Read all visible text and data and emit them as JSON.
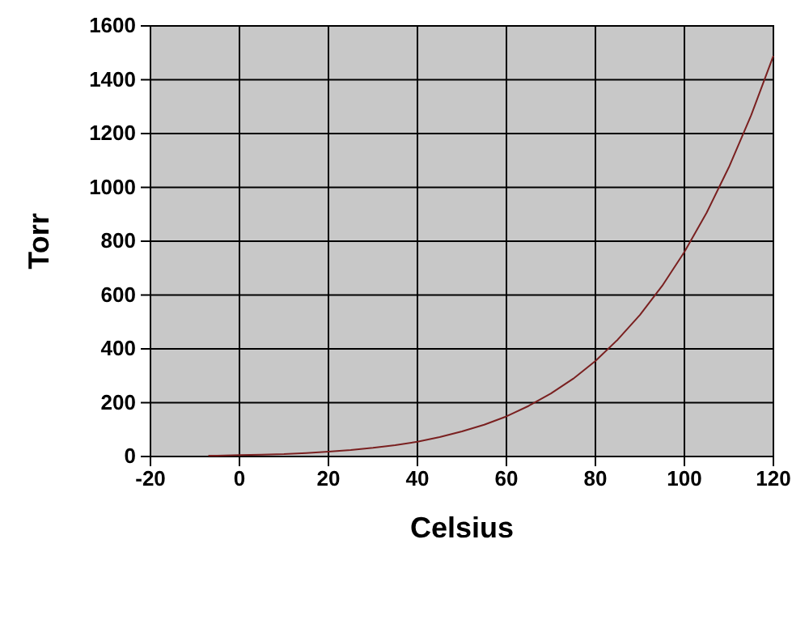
{
  "chart_data": {
    "type": "line",
    "xlabel": "Celsius",
    "ylabel": "Torr",
    "x": [
      -7,
      -5,
      0,
      5,
      10,
      15,
      20,
      25,
      30,
      35,
      40,
      45,
      50,
      55,
      60,
      65,
      70,
      75,
      80,
      85,
      90,
      95,
      100,
      105,
      110,
      115,
      120
    ],
    "series": [
      {
        "color": "#7a2020",
        "values": [
          3,
          3,
          5,
          7,
          9,
          13,
          18,
          24,
          32,
          42,
          55,
          72,
          93,
          118,
          149,
          188,
          234,
          289,
          355,
          434,
          526,
          634,
          760,
          906,
          1075,
          1268,
          1489
        ]
      }
    ],
    "xlim": [
      -20,
      120
    ],
    "xticks": [
      -20,
      0,
      20,
      40,
      60,
      80,
      100,
      120
    ],
    "ylim": [
      0,
      1600
    ],
    "yticks": [
      0,
      200,
      400,
      600,
      800,
      1000,
      1200,
      1400,
      1600
    ],
    "grid": true,
    "marker": "none",
    "line_style": "solid"
  }
}
